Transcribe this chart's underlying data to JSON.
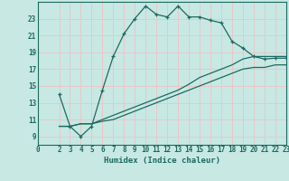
{
  "xlabel": "Humidex (Indice chaleur)",
  "xlim": [
    0,
    23
  ],
  "ylim": [
    8,
    25
  ],
  "xticks": [
    0,
    2,
    3,
    4,
    5,
    6,
    7,
    8,
    9,
    10,
    11,
    12,
    13,
    14,
    15,
    16,
    17,
    18,
    19,
    20,
    21,
    22,
    23
  ],
  "yticks": [
    9,
    11,
    13,
    15,
    17,
    19,
    21,
    23
  ],
  "bg_color": "#c8e8e4",
  "grid_color": "#e8c8c8",
  "line_color": "#1a6b60",
  "curve1_x": [
    2,
    3,
    4,
    5,
    6,
    7,
    8,
    9,
    10,
    11,
    12,
    13,
    14,
    15,
    16,
    17,
    18,
    19,
    20,
    21,
    22,
    23
  ],
  "curve1_y": [
    14.0,
    10.2,
    9.0,
    10.2,
    14.5,
    18.5,
    21.2,
    23.0,
    24.5,
    23.5,
    23.2,
    24.5,
    23.2,
    23.2,
    22.8,
    22.5,
    20.3,
    19.5,
    18.5,
    18.2,
    18.3,
    18.3
  ],
  "curve2_x": [
    2,
    3,
    4,
    5,
    6,
    7,
    8,
    9,
    10,
    11,
    12,
    13,
    14,
    15,
    16,
    17,
    18,
    19,
    20,
    21,
    22,
    23
  ],
  "curve2_y": [
    10.2,
    10.2,
    10.5,
    10.5,
    11.0,
    11.5,
    12.0,
    12.5,
    13.0,
    13.5,
    14.0,
    14.5,
    15.2,
    16.0,
    16.5,
    17.0,
    17.5,
    18.2,
    18.5,
    18.5,
    18.5,
    18.5
  ],
  "curve3_x": [
    2,
    3,
    4,
    5,
    6,
    7,
    8,
    9,
    10,
    11,
    12,
    13,
    14,
    15,
    16,
    17,
    18,
    19,
    20,
    21,
    22,
    23
  ],
  "curve3_y": [
    10.2,
    10.2,
    10.5,
    10.5,
    10.8,
    11.0,
    11.5,
    12.0,
    12.5,
    13.0,
    13.5,
    14.0,
    14.5,
    15.0,
    15.5,
    16.0,
    16.5,
    17.0,
    17.2,
    17.2,
    17.5,
    17.5
  ]
}
